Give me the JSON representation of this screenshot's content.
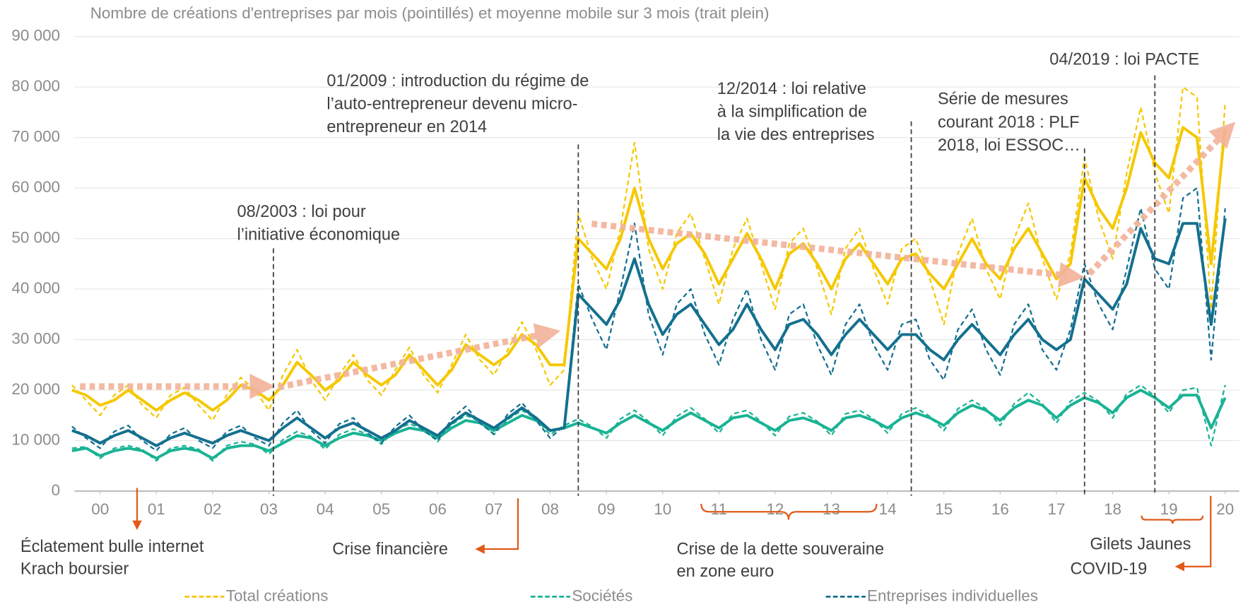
{
  "chart_data": {
    "type": "line",
    "title": "Nombre de créations d'entreprises par mois (pointillés) et moyenne mobile sur 3 mois (trait plein)",
    "x": [
      2000,
      2000.25,
      2000.5,
      2000.75,
      2001,
      2001.25,
      2001.5,
      2001.75,
      2002,
      2002.25,
      2002.5,
      2002.75,
      2003,
      2003.25,
      2003.5,
      2003.75,
      2004,
      2004.25,
      2004.5,
      2004.75,
      2005,
      2005.25,
      2005.5,
      2005.75,
      2006,
      2006.25,
      2006.5,
      2006.75,
      2007,
      2007.25,
      2007.5,
      2007.75,
      2008,
      2008.25,
      2008.5,
      2008.75,
      2009,
      2009.25,
      2009.5,
      2009.75,
      2010,
      2010.25,
      2010.5,
      2010.75,
      2011,
      2011.25,
      2011.5,
      2011.75,
      2012,
      2012.25,
      2012.5,
      2012.75,
      2013,
      2013.25,
      2013.5,
      2013.75,
      2014,
      2014.25,
      2014.5,
      2014.75,
      2015,
      2015.25,
      2015.5,
      2015.75,
      2016,
      2016.25,
      2016.5,
      2016.75,
      2017,
      2017.25,
      2017.5,
      2017.75,
      2018,
      2018.25,
      2018.5,
      2018.75,
      2019,
      2019.25,
      2019.5,
      2019.75,
      2020,
      2020.25,
      2020.5
    ],
    "series": [
      {
        "name": "Total créations",
        "color": "#f5c800",
        "values": [
          21000,
          18000,
          15000,
          19000,
          21000,
          17000,
          14500,
          19000,
          20500,
          17000,
          14000,
          19000,
          22500,
          20000,
          16000,
          23000,
          28000,
          22000,
          18000,
          23000,
          27000,
          22000,
          19000,
          24000,
          28500,
          23000,
          19500,
          25000,
          31000,
          26000,
          23000,
          28000,
          33500,
          28000,
          21000,
          24000,
          55000,
          46000,
          40000,
          52000,
          69000,
          48000,
          40000,
          51000,
          55000,
          46000,
          37000,
          48000,
          54000,
          45000,
          36000,
          49000,
          52000,
          44000,
          35000,
          48000,
          52000,
          44000,
          37000,
          48000,
          50000,
          42000,
          33000,
          47000,
          54000,
          44000,
          38000,
          50000,
          57000,
          46000,
          38000,
          47000,
          66000,
          54000,
          46000,
          63000,
          76000,
          63000,
          55000,
          80000,
          78000,
          36000,
          77000
        ],
        "moving_average": [
          20000,
          19000,
          17000,
          18000,
          20000,
          18000,
          16000,
          18000,
          19500,
          18000,
          16000,
          18000,
          21000,
          20000,
          18000,
          21000,
          25500,
          23000,
          20000,
          22000,
          25500,
          23000,
          21000,
          23000,
          27000,
          24000,
          21000,
          24000,
          29000,
          27000,
          25000,
          27000,
          31000,
          29000,
          25000,
          25000,
          50000,
          47000,
          44000,
          50000,
          60000,
          50000,
          44000,
          49000,
          51000,
          47000,
          41000,
          46000,
          51000,
          46000,
          40000,
          47000,
          49000,
          45000,
          40000,
          46000,
          49000,
          45000,
          41000,
          46000,
          47000,
          43000,
          40000,
          45000,
          50000,
          45000,
          42000,
          48000,
          52000,
          47000,
          42000,
          45000,
          62000,
          56000,
          52000,
          60000,
          71000,
          65000,
          62000,
          72000,
          70000,
          45000,
          72000
        ]
      },
      {
        "name": "Sociétés",
        "color": "#19b394",
        "values": [
          8500,
          8800,
          6500,
          8500,
          9000,
          8300,
          6000,
          8500,
          9000,
          8300,
          6000,
          9000,
          9800,
          9300,
          7300,
          10200,
          11800,
          10800,
          8300,
          11200,
          12300,
          11300,
          9300,
          12200,
          13300,
          12300,
          9800,
          13200,
          15000,
          13800,
          11200,
          14200,
          16000,
          14300,
          11200,
          13000,
          14300,
          12800,
          10500,
          14300,
          16000,
          13800,
          11000,
          14800,
          16500,
          14300,
          11500,
          15300,
          16000,
          13800,
          11000,
          14800,
          15500,
          13800,
          11000,
          15300,
          16000,
          14300,
          11500,
          15300,
          16500,
          14800,
          12000,
          16300,
          18000,
          16300,
          13000,
          17300,
          19500,
          17300,
          13500,
          17800,
          19500,
          17800,
          14500,
          19300,
          21000,
          18800,
          15500,
          20000,
          20500,
          9000,
          21000
        ],
        "moving_average": [
          8000,
          8500,
          7000,
          8000,
          8500,
          8000,
          6500,
          8000,
          8500,
          8000,
          6500,
          8500,
          9000,
          9000,
          8000,
          9500,
          11000,
          10500,
          9000,
          10500,
          11500,
          11000,
          10000,
          11500,
          12500,
          12000,
          10500,
          12500,
          14000,
          13500,
          12000,
          13500,
          15000,
          14000,
          12000,
          12500,
          13500,
          12500,
          11500,
          13500,
          15000,
          13500,
          12000,
          14000,
          15500,
          14000,
          12500,
          14500,
          15000,
          13500,
          12000,
          14000,
          14500,
          13500,
          12000,
          14500,
          15000,
          14000,
          12500,
          14500,
          15500,
          14500,
          13000,
          15500,
          17000,
          16000,
          14000,
          16500,
          18000,
          17000,
          14500,
          17000,
          18500,
          17500,
          15500,
          18500,
          20000,
          18500,
          16500,
          19000,
          19000,
          12500,
          18500
        ]
      },
      {
        "name": "Entreprises individuelles",
        "color": "#13708f",
        "values": [
          12800,
          10500,
          8500,
          11800,
          13000,
          10000,
          8000,
          11300,
          12500,
          10000,
          8500,
          11800,
          13000,
          10500,
          9000,
          13500,
          16000,
          12000,
          9500,
          13300,
          14500,
          11500,
          9500,
          12800,
          15000,
          12000,
          10000,
          14300,
          16800,
          13500,
          11300,
          15300,
          17500,
          14000,
          10500,
          13000,
          41000,
          34000,
          28000,
          40000,
          53000,
          35000,
          27000,
          37000,
          40000,
          31000,
          25000,
          34000,
          40000,
          30000,
          24000,
          35000,
          37000,
          29000,
          23000,
          33000,
          37000,
          29000,
          24000,
          33000,
          34000,
          26000,
          22000,
          32000,
          36000,
          28000,
          23000,
          33000,
          37000,
          28000,
          24000,
          32000,
          45000,
          37000,
          32000,
          44000,
          56000,
          44000,
          40000,
          58000,
          60000,
          26000,
          56000
        ],
        "moving_average": [
          12000,
          11000,
          9500,
          11000,
          12000,
          10500,
          9000,
          10500,
          11500,
          10500,
          9500,
          11000,
          12000,
          11000,
          10000,
          12500,
          14500,
          12500,
          10500,
          12500,
          13500,
          12000,
          10500,
          12000,
          14000,
          12500,
          11000,
          13500,
          15500,
          14000,
          12500,
          14500,
          16500,
          14500,
          12000,
          12500,
          39000,
          36000,
          33000,
          38000,
          46000,
          37000,
          31000,
          35000,
          37000,
          33000,
          29000,
          32000,
          37000,
          32000,
          28000,
          33000,
          34000,
          31000,
          27000,
          31000,
          34000,
          31000,
          28000,
          31000,
          31000,
          28000,
          26000,
          30000,
          33000,
          30000,
          27000,
          31000,
          34000,
          30000,
          28000,
          30000,
          42000,
          39000,
          36000,
          41000,
          52000,
          46000,
          45000,
          53000,
          53000,
          33000,
          54000
        ]
      }
    ],
    "xlim": [
      2000,
      2020.75
    ],
    "xticks": [
      {
        "value": 2000.5,
        "label": "00"
      },
      {
        "value": 2001.5,
        "label": "01"
      },
      {
        "value": 2002.5,
        "label": "02"
      },
      {
        "value": 2003.5,
        "label": "03"
      },
      {
        "value": 2004.5,
        "label": "04"
      },
      {
        "value": 2005.5,
        "label": "05"
      },
      {
        "value": 2006.5,
        "label": "06"
      },
      {
        "value": 2007.5,
        "label": "07"
      },
      {
        "value": 2008.5,
        "label": "08"
      },
      {
        "value": 2009.5,
        "label": "09"
      },
      {
        "value": 2010.5,
        "label": "10"
      },
      {
        "value": 2011.5,
        "label": "11"
      },
      {
        "value": 2012.5,
        "label": "12"
      },
      {
        "value": 2013.5,
        "label": "13"
      },
      {
        "value": 2014.5,
        "label": "14"
      },
      {
        "value": 2015.5,
        "label": "15"
      },
      {
        "value": 2016.5,
        "label": "16"
      },
      {
        "value": 2017.5,
        "label": "17"
      },
      {
        "value": 2018.5,
        "label": "18"
      },
      {
        "value": 2019.5,
        "label": "19"
      },
      {
        "value": 2020.5,
        "label": "20"
      }
    ],
    "ylim": [
      0,
      90000
    ],
    "yticks": [
      0,
      {
        "value": 10000,
        "label": "10 000"
      },
      {
        "value": 20000,
        "label": "20 000"
      },
      {
        "value": 30000,
        "label": "30 000"
      },
      {
        "value": 40000,
        "label": "40 000"
      },
      {
        "value": 50000,
        "label": "50 000"
      },
      {
        "value": 60000,
        "label": "60 000"
      },
      {
        "value": 70000,
        "label": "70 000"
      },
      {
        "value": 80000,
        "label": "80 000"
      },
      {
        "value": 90000,
        "label": "90 000"
      }
    ],
    "grid": true,
    "events": [
      {
        "x": 2003.58,
        "text": [
          "08/2003 : loi pour",
          "l’initiative économique"
        ]
      },
      {
        "x": 2009,
        "text": [
          "01/2009 : introduction du régime de",
          "l’auto-entrepreneur devenu micro-",
          "entrepreneur en 2014"
        ]
      },
      {
        "x": 2014.92,
        "text": [
          "12/2014 : loi relative",
          "à la simplification de",
          "la vie des entreprises"
        ]
      },
      {
        "x": 2018,
        "text": [
          "Série de mesures",
          "courant 2018 : PLF",
          "2018, loi ESSOC…"
        ]
      },
      {
        "x": 2019.25,
        "text": [
          "04/2019 : loi PACTE"
        ]
      }
    ],
    "crises": [
      [
        "Éclatement bulle internet",
        "Krach boursier"
      ],
      [
        "Crise financière"
      ],
      [
        "Crise de la dette souveraine",
        "en zone euro"
      ],
      [
        "Gilets Jaunes"
      ],
      [
        "COVID-19"
      ]
    ]
  }
}
